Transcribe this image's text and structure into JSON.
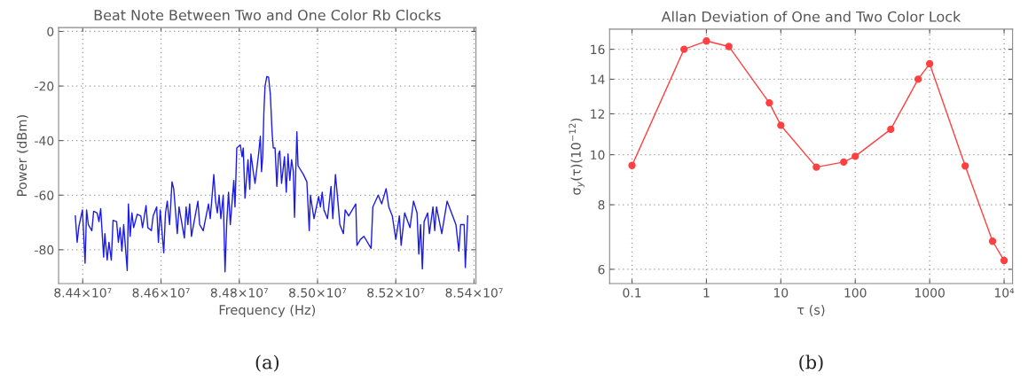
{
  "chart_data": [
    {
      "type": "line",
      "title": "Beat Note Between Two and One Color Rb Clocks",
      "xlabel": "Frequency (Hz)",
      "ylabel": "Power (dBm)",
      "xlim": [
        84338300,
        85404900
      ],
      "ylim": [
        -92.4,
        1.4
      ],
      "xticks": [
        {
          "value": 84400000,
          "label": "8.44×10⁷"
        },
        {
          "value": 84600000,
          "label": "8.46×10⁷"
        },
        {
          "value": 84800000,
          "label": "8.48×10⁷"
        },
        {
          "value": 85000000,
          "label": "8.50×10⁷"
        },
        {
          "value": 85200000,
          "label": "8.52×10⁷"
        },
        {
          "value": 85400000,
          "label": "8.54×10⁷"
        }
      ],
      "yticks": [
        0,
        -20,
        -40,
        -60,
        -80
      ],
      "grid": true,
      "marker": "none",
      "line_style": "solid",
      "annotations": [
        "(a)"
      ],
      "series": [
        {
          "color": "#1c1ce6",
          "x": [
            84381000,
            84385700,
            84390200,
            84399200,
            84406000,
            84409800,
            84414300,
            84423300,
            84427900,
            84436900,
            84441400,
            84445900,
            84453400,
            84456500,
            84462500,
            84467000,
            84473000,
            84477500,
            84486600,
            84491100,
            84495600,
            84500100,
            84504600,
            84513700,
            84516700,
            84521200,
            84525700,
            84530200,
            84539200,
            84548300,
            84552800,
            84561800,
            84566300,
            84575400,
            84579900,
            84588900,
            84593400,
            84598000,
            84607000,
            84611500,
            84616000,
            84622000,
            84628100,
            84632600,
            84641600,
            84646100,
            84659700,
            84664200,
            84668700,
            84673200,
            84677700,
            84694300,
            84698800,
            84707900,
            84721400,
            84725900,
            84735000,
            84739500,
            84744000,
            84748500,
            84753000,
            84759000,
            84763600,
            84768100,
            84772600,
            84777100,
            84786100,
            84789100,
            84793700,
            84802700,
            84807200,
            84810200,
            84814700,
            84822300,
            84826800,
            84829800,
            84835800,
            84840300,
            84849400,
            84853900,
            84856900,
            84859900,
            84862900,
            84865900,
            84870400,
            84875000,
            84879500,
            84884000,
            84887000,
            84891500,
            84896000,
            84900500,
            84903600,
            84908100,
            84915600,
            84920100,
            84924600,
            84929200,
            84933700,
            84938200,
            84941200,
            84947200,
            84950200,
            84963800,
            84972800,
            84978800,
            84981800,
            84990900,
            85002900,
            85007400,
            85012000,
            85016500,
            85025500,
            85034500,
            85039100,
            85045800,
            85052600,
            85057100,
            85066100,
            85070700,
            85079700,
            85097800,
            85100800,
            85109800,
            85118800,
            85136900,
            85141400,
            85155000,
            85164000,
            85175300,
            85182100,
            85191100,
            85200100,
            85209200,
            85213700,
            85222700,
            85236300,
            85245300,
            85254300,
            85258800,
            85263300,
            85267900,
            85272400,
            85281400,
            85285900,
            85295000,
            85299500,
            85304000,
            85317500,
            85331100,
            85353700,
            85361200,
            85365700,
            85374700,
            85377700,
            85383800
          ],
          "values": [
            -67.6,
            -77.3,
            -71.4,
            -65.4,
            -84.9,
            -65.4,
            -70.8,
            -73.0,
            -65.9,
            -66.5,
            -69.7,
            -64.9,
            -82.7,
            -74.1,
            -83.8,
            -77.3,
            -83.8,
            -69.2,
            -69.7,
            -77.3,
            -71.9,
            -80.5,
            -70.8,
            -87.6,
            -63.2,
            -75.1,
            -66.5,
            -71.9,
            -67.0,
            -67.6,
            -71.9,
            -63.8,
            -71.9,
            -73.0,
            -67.6,
            -64.3,
            -77.3,
            -65.4,
            -81.1,
            -66.5,
            -62.2,
            -70.8,
            -55.1,
            -57.8,
            -74.1,
            -64.3,
            -75.7,
            -64.3,
            -70.8,
            -63.2,
            -75.1,
            -62.2,
            -70.8,
            -73.0,
            -63.2,
            -68.6,
            -52.4,
            -62.2,
            -66.5,
            -60.0,
            -68.6,
            -60.0,
            -88.1,
            -69.7,
            -58.9,
            -70.8,
            -54.6,
            -64.3,
            -42.7,
            -41.6,
            -45.9,
            -42.7,
            -61.1,
            -47.0,
            -57.8,
            -44.9,
            -51.4,
            -55.7,
            -44.9,
            -38.4,
            -51.4,
            -45.9,
            -29.7,
            -20.0,
            -16.5,
            -16.8,
            -23.2,
            -37.3,
            -42.7,
            -42.7,
            -56.8,
            -44.9,
            -43.8,
            -55.7,
            -45.9,
            -58.9,
            -44.9,
            -54.6,
            -47.0,
            -51.4,
            -68.1,
            -36.8,
            -49.2,
            -52.4,
            -55.1,
            -73.0,
            -60.0,
            -68.6,
            -60.5,
            -64.3,
            -58.9,
            -65.4,
            -68.6,
            -56.8,
            -68.6,
            -52.4,
            -63.2,
            -70.8,
            -74.1,
            -65.4,
            -67.6,
            -63.2,
            -78.4,
            -76.2,
            -75.1,
            -79.5,
            -64.3,
            -60.0,
            -63.2,
            -57.6,
            -64.3,
            -67.6,
            -76.2,
            -67.6,
            -78.4,
            -66.5,
            -71.9,
            -62.2,
            -66.5,
            -81.6,
            -70.8,
            -87.0,
            -69.7,
            -66.5,
            -74.1,
            -64.3,
            -73.0,
            -64.3,
            -74.1,
            -62.2,
            -70.8,
            -80.5,
            -70.8,
            -70.8,
            -86.5,
            -67.6
          ]
        }
      ]
    },
    {
      "type": "line",
      "title": "Allan Deviation of One and Two Color Lock",
      "xlabel": "τ (s)",
      "ylabel": "σ$_{y}$(τ)(10$^{−12}$)",
      "log": "xy",
      "xlim": [
        0.05,
        13000
      ],
      "ylim": [
        5.63,
        17.5
      ],
      "xticks": [
        0.1,
        1,
        10,
        100,
        1000,
        {
          "value": 10000,
          "label": "10⁴"
        }
      ],
      "yticks": [
        6,
        8,
        10,
        12,
        14,
        16
      ],
      "grid": true,
      "marker": "circle",
      "line_style": "solid",
      "annotations": [
        "(b)"
      ],
      "series": [
        {
          "color": "#ff4040",
          "x": [
            0.1,
            0.5,
            1,
            2,
            7,
            10,
            30,
            70,
            100,
            300,
            700,
            1000,
            3000,
            7000,
            10000
          ],
          "values": [
            9.53,
            16.0,
            16.6,
            16.2,
            12.6,
            11.4,
            9.46,
            9.68,
            9.93,
            11.2,
            14.0,
            15.0,
            9.51,
            6.8,
            6.24
          ]
        }
      ]
    }
  ]
}
